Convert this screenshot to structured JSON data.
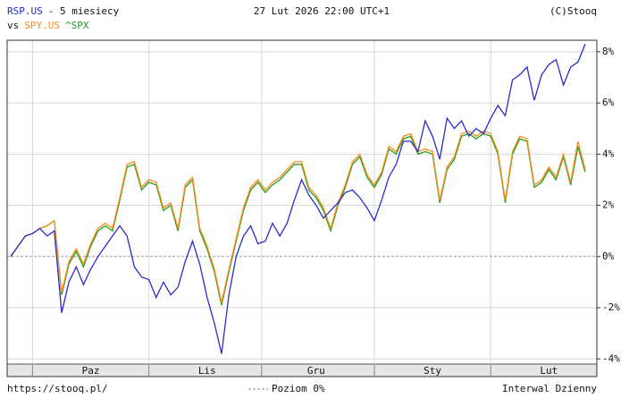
{
  "chart_data": {
    "type": "line",
    "title": "- 5 miesiecy",
    "timestamp": "27 Lut 2026 22:00 UTC+1",
    "credit": "(C)Stooq",
    "versus": "vs",
    "footer_url": "https://stooq.pl/",
    "footer_interval": "Interwal Dzienny",
    "reference_line": {
      "value": 0,
      "label": "Poziom 0%"
    },
    "categories": [
      null,
      null,
      null,
      null,
      null,
      null,
      null,
      null,
      null,
      null,
      null,
      "Paz",
      null,
      null,
      null,
      null,
      null,
      null,
      null,
      null,
      null,
      null,
      null,
      null,
      null,
      null,
      null,
      "Lis",
      null,
      null,
      null,
      null,
      null,
      null,
      null,
      null,
      null,
      null,
      null,
      null,
      null,
      null,
      "Gru",
      null,
      null,
      null,
      null,
      null,
      null,
      null,
      null,
      null,
      null,
      null,
      null,
      null,
      null,
      null,
      "Sty",
      null,
      null,
      null,
      null,
      null,
      null,
      null,
      null,
      null,
      null,
      null,
      null,
      null,
      null,
      null,
      "Lut",
      null,
      null,
      null,
      null,
      null
    ],
    "series": [
      {
        "name": "RSP.US",
        "color": "#2b2bcc",
        "values": [
          0,
          0.4,
          0.8,
          0.9,
          1.1,
          0.8,
          1.0,
          -2.2,
          -1.0,
          -0.4,
          -1.1,
          -0.5,
          0.0,
          0.4,
          0.8,
          1.2,
          0.8,
          -0.4,
          -0.8,
          -0.9,
          -1.6,
          -1.0,
          -1.5,
          -1.2,
          -0.2,
          0.6,
          -0.3,
          -1.6,
          -2.6,
          -3.8,
          -1.5,
          0.0,
          0.8,
          1.2,
          0.5,
          0.6,
          1.3,
          0.8,
          1.3,
          2.2,
          3.0,
          2.4,
          2.0,
          1.5,
          1.8,
          2.1,
          2.5,
          2.6,
          2.3,
          1.9,
          1.4,
          2.2,
          3.1,
          3.6,
          4.5,
          4.5,
          4.1,
          5.3,
          4.7,
          3.8,
          5.4,
          5.0,
          5.3,
          4.7,
          5.0,
          4.8,
          5.4,
          5.9,
          5.5,
          6.9,
          7.1,
          7.4,
          6.1,
          7.1,
          7.5,
          7.7,
          6.7,
          7.4,
          7.6,
          8.3
        ]
      },
      {
        "name": "SPY.US",
        "color": "#ff8c1a",
        "values": [
          0,
          0.4,
          0.8,
          0.9,
          1.1,
          1.2,
          1.4,
          -1.4,
          -0.2,
          0.3,
          -0.3,
          0.5,
          1.1,
          1.3,
          1.1,
          2.3,
          3.6,
          3.7,
          2.7,
          3.0,
          2.9,
          1.9,
          2.1,
          1.1,
          2.8,
          3.1,
          1.1,
          0.4,
          -0.5,
          -1.8,
          -0.5,
          0.7,
          1.9,
          2.7,
          3.0,
          2.6,
          2.9,
          3.1,
          3.4,
          3.7,
          3.7,
          2.7,
          2.4,
          1.9,
          1.1,
          2.1,
          2.8,
          3.7,
          4.0,
          3.2,
          2.8,
          3.3,
          4.3,
          4.1,
          4.7,
          4.8,
          4.1,
          4.2,
          4.1,
          2.2,
          3.5,
          3.9,
          4.8,
          4.9,
          4.7,
          4.9,
          4.8,
          4.1,
          2.2,
          4.1,
          4.7,
          4.6,
          2.8,
          3.0,
          3.5,
          3.1,
          4.0,
          2.9,
          4.5,
          3.4
        ]
      },
      {
        "name": "^SPX",
        "color": "#1e9e1e",
        "values": [
          0,
          0.4,
          0.8,
          0.9,
          1.1,
          1.2,
          1.4,
          -1.5,
          -0.3,
          0.2,
          -0.4,
          0.4,
          1.0,
          1.2,
          1.0,
          2.2,
          3.5,
          3.6,
          2.6,
          2.9,
          2.8,
          1.8,
          2.0,
          1.0,
          2.7,
          3.0,
          1.0,
          0.3,
          -0.6,
          -1.9,
          -0.6,
          0.6,
          1.8,
          2.6,
          2.9,
          2.5,
          2.8,
          3.0,
          3.3,
          3.6,
          3.6,
          2.6,
          2.3,
          1.8,
          1.0,
          2.0,
          2.7,
          3.6,
          3.9,
          3.1,
          2.7,
          3.2,
          4.2,
          4.0,
          4.6,
          4.7,
          4.0,
          4.1,
          4.0,
          2.1,
          3.4,
          3.8,
          4.7,
          4.8,
          4.6,
          4.8,
          4.7,
          4.0,
          2.1,
          4.0,
          4.6,
          4.5,
          2.7,
          2.9,
          3.4,
          3.0,
          3.9,
          2.8,
          4.3,
          3.3
        ]
      }
    ],
    "ylim": [
      -4.2,
      8.45
    ],
    "yticks": [
      {
        "value": -4,
        "label": "-4%"
      },
      {
        "value": -2,
        "label": "-2%"
      },
      {
        "value": 0,
        "label": "0%"
      },
      {
        "value": 2,
        "label": "2%"
      },
      {
        "value": 4,
        "label": "4%"
      },
      {
        "value": 6,
        "label": "6%"
      },
      {
        "value": 8,
        "label": "8%"
      }
    ],
    "grid": true
  }
}
